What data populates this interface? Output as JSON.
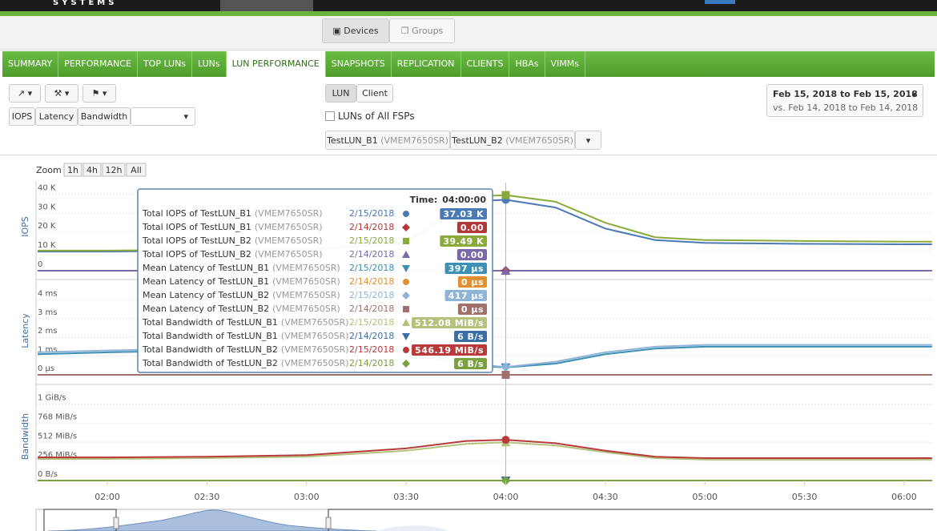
{
  "header": {
    "brand": "SYSTEMS",
    "views": [
      "Devices",
      "Groups"
    ]
  },
  "tabs": {
    "items": [
      "SUMMARY",
      "PERFORMANCE",
      "TOP LUNs",
      "LUNs",
      "LUN PERFORMANCE",
      "SNAPSHOTS",
      "REPLICATION",
      "CLIENTS",
      "HBAs",
      "VIMMs"
    ],
    "active": 4
  },
  "toolbar": {
    "metrics": [
      "IOPS",
      "Latency",
      "Bandwidth"
    ],
    "modes": [
      "LUN",
      "Client"
    ],
    "all_fsps": "LUNs of All FSPs",
    "selected": [
      {
        "name": "TestLUN_B1",
        "device": "(VMEM7650SR)"
      },
      {
        "name": "TestLUN_B2",
        "device": "(VMEM7650SR)"
      }
    ],
    "date_range": "Feb 15, 2018 to Feb 15, 2018",
    "compare_range": "vs. Feb 14, 2018 to Feb 14, 2018"
  },
  "zoom": {
    "label": "Zoom",
    "options": [
      "1h",
      "4h",
      "12h",
      "All"
    ]
  },
  "time_axis": {
    "x": [
      1.65,
      2.0,
      2.5,
      3.0,
      3.5,
      3.8,
      4.0,
      4.25,
      4.5,
      4.75,
      5.0,
      5.5,
      6.0,
      6.14
    ],
    "xlim": [
      1.642,
      6.145
    ],
    "xticks": [
      {
        "value": 2,
        "label": "02:00"
      },
      {
        "value": 2.5,
        "label": "02:30"
      },
      {
        "value": 3,
        "label": "03:00"
      },
      {
        "value": 3.5,
        "label": "03:30"
      },
      {
        "value": 4,
        "label": "04:00"
      },
      {
        "value": 4.5,
        "label": "04:30"
      },
      {
        "value": 5,
        "label": "05:00"
      },
      {
        "value": 5.5,
        "label": "05:30"
      },
      {
        "value": 6,
        "label": "06:00"
      }
    ]
  },
  "charts": [
    {
      "type": "line",
      "ylabel": "IOPS",
      "ylim": [
        0,
        46000
      ],
      "yticks": [
        0,
        {
          "value": 10000,
          "label": "10 K"
        },
        {
          "value": 20000,
          "label": "20 K"
        },
        {
          "value": 30000,
          "label": "30 K"
        },
        {
          "value": 40000,
          "label": "40 K"
        }
      ],
      "series": [
        {
          "color": "#4a7ab5",
          "marker": "circle",
          "values": [
            10000,
            10000,
            10500,
            11000,
            14000,
            36000,
            37030,
            33000,
            22000,
            16000,
            14500,
            14000,
            13800,
            13800
          ]
        },
        {
          "color": "#b03a3a",
          "marker": "diamond",
          "values": [
            0,
            0,
            0,
            0,
            0,
            0,
            0,
            0,
            0,
            0,
            0,
            0,
            0,
            0
          ]
        },
        {
          "color": "#8aab3c",
          "marker": "square",
          "values": [
            10500,
            10500,
            11000,
            11500,
            15000,
            38500,
            39490,
            36000,
            25000,
            17500,
            16000,
            15500,
            15200,
            15200
          ]
        },
        {
          "color": "#7b68a8",
          "marker": "triangle",
          "values": [
            0,
            0,
            0,
            0,
            0,
            0,
            0,
            0,
            0,
            0,
            0,
            0,
            0,
            0
          ]
        }
      ]
    },
    {
      "type": "line",
      "ylabel": "Latency",
      "ylim": [
        0,
        4.7
      ],
      "yticks": [
        {
          "value": 0,
          "label": "0 µs"
        },
        {
          "value": 1,
          "label": "1 ms"
        },
        {
          "value": 2,
          "label": "2 ms"
        },
        {
          "value": 3,
          "label": "3 ms"
        },
        {
          "value": 4,
          "label": "4 ms"
        }
      ],
      "series": [
        {
          "color": "#3c8fb5",
          "marker": "triangle-down",
          "values": [
            1.1,
            1.2,
            1.3,
            1.4,
            1.2,
            0.5,
            0.397,
            0.6,
            1.1,
            1.4,
            1.5,
            1.5,
            1.5,
            1.5
          ]
        },
        {
          "color": "#e09030",
          "marker": "circle",
          "values": [
            0,
            0,
            0,
            0,
            0,
            0,
            0,
            0,
            0,
            0,
            0,
            0,
            0,
            0
          ]
        },
        {
          "color": "#8fb4d8",
          "marker": "diamond",
          "values": [
            1.2,
            1.3,
            1.4,
            1.5,
            1.3,
            0.6,
            0.417,
            0.7,
            1.2,
            1.5,
            1.6,
            1.6,
            1.6,
            1.6
          ]
        },
        {
          "color": "#a0706a",
          "marker": "square",
          "values": [
            0,
            0,
            0,
            0,
            0,
            0,
            0,
            0,
            0,
            0,
            0,
            0,
            0,
            0
          ]
        }
      ]
    },
    {
      "type": "line",
      "ylabel": "Bandwidth",
      "ylim": [
        0,
        1180
      ],
      "yticks": [
        {
          "value": 0,
          "label": "0 B/s"
        },
        {
          "value": 256,
          "label": "256 MiB/s"
        },
        {
          "value": 512,
          "label": "512 MiB/s"
        },
        {
          "value": 768,
          "label": "768 MiB/s"
        },
        {
          "value": 1024,
          "label": "1 GiB/s"
        }
      ],
      "series": [
        {
          "color": "#b5c27e",
          "marker": "triangle",
          "values": [
            290,
            290,
            300,
            320,
            400,
            490,
            512.08,
            470,
            380,
            300,
            280,
            280,
            280,
            280
          ]
        },
        {
          "color": "#3a6ea5",
          "marker": "triangle-down",
          "values": [
            0,
            0,
            0,
            0,
            0,
            0,
            0,
            0,
            0,
            0,
            0,
            0,
            0,
            0
          ]
        },
        {
          "color": "#b83a3a",
          "marker": "circle",
          "values": [
            310,
            310,
            320,
            340,
            430,
            530,
            546.19,
            500,
            400,
            320,
            300,
            300,
            300,
            300
          ]
        },
        {
          "color": "#7aa040",
          "marker": "diamond",
          "values": [
            0,
            0,
            0,
            0,
            0,
            0,
            0,
            0,
            0,
            0,
            0,
            0,
            0,
            0
          ]
        }
      ]
    }
  ],
  "tooltip": {
    "time_label": "Time:",
    "time": "04:00:00",
    "cursor": 4,
    "rows": [
      {
        "metric": "Total IOPS of TestLUN_B1",
        "device": "(VMEM7650SR)",
        "date": "2/15/2018",
        "value": "37.03 K"
      },
      {
        "metric": "Total IOPS of TestLUN_B1",
        "device": "(VMEM7650SR)",
        "date": "2/14/2018",
        "value": "0.00"
      },
      {
        "metric": "Total IOPS of TestLUN_B2",
        "device": "(VMEM7650SR)",
        "date": "2/15/2018",
        "value": "39.49 K"
      },
      {
        "metric": "Total IOPS of TestLUN_B2",
        "device": "(VMEM7650SR)",
        "date": "2/14/2018",
        "value": "0.00"
      },
      {
        "metric": "Mean Latency of TestLUN_B1",
        "device": "(VMEM7650SR)",
        "date": "2/15/2018",
        "value": "397 µs"
      },
      {
        "metric": "Mean Latency of TestLUN_B1",
        "device": "(VMEM7650SR)",
        "date": "2/14/2018",
        "value": "0 µs"
      },
      {
        "metric": "Mean Latency of TestLUN_B2",
        "device": "(VMEM7650SR)",
        "date": "2/15/2018",
        "value": "417 µs"
      },
      {
        "metric": "Mean Latency of TestLUN_B2",
        "device": "(VMEM7650SR)",
        "date": "2/14/2018",
        "value": "0 µs"
      },
      {
        "metric": "Total Bandwidth of TestLUN_B1",
        "device": "(VMEM7650SR)",
        "date": "2/15/2018",
        "value": "512.08 MiB/s"
      },
      {
        "metric": "Total Bandwidth of TestLUN_B1",
        "device": "(VMEM7650SR)",
        "date": "2/14/2018",
        "value": "6 B/s"
      },
      {
        "metric": "Total Bandwidth of TestLUN_B2",
        "device": "(VMEM7650SR)",
        "date": "2/15/2018",
        "value": "546.19 MiB/s"
      },
      {
        "metric": "Total Bandwidth of TestLUN_B2",
        "device": "(VMEM7650SR)",
        "date": "2/14/2018",
        "value": "6 B/s"
      }
    ]
  }
}
